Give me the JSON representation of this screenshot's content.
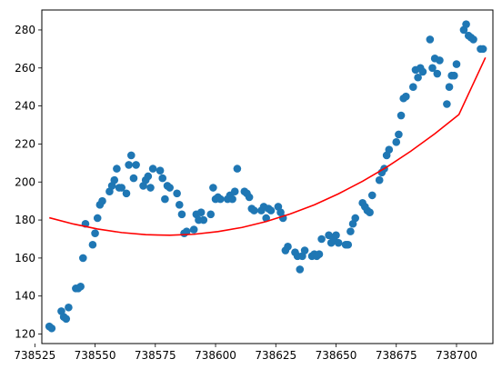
{
  "chart_data": {
    "type": "scatter",
    "title": "",
    "xlabel": "",
    "ylabel": "",
    "xlim": [
      738527.9,
      738715.1
    ],
    "ylim": [
      115.0,
      290.5
    ],
    "x_ticks": [
      738525,
      738550,
      738575,
      738600,
      738625,
      738650,
      738675,
      738700
    ],
    "y_ticks": [
      120,
      140,
      160,
      180,
      200,
      220,
      240,
      260,
      280
    ],
    "grid": false,
    "legend": "none",
    "colors": {
      "points": "#1f77b4",
      "fit": "#ff0000"
    },
    "series": [
      {
        "kind": "points",
        "x": [
          738531,
          738532,
          738536,
          738537,
          738538,
          738539,
          738542,
          738543,
          738544,
          738545,
          738546,
          738549,
          738550,
          738551,
          738552,
          738553,
          738556,
          738557,
          738558,
          738559,
          738560,
          738561,
          738563,
          738564,
          738565,
          738566,
          738567,
          738570,
          738571,
          738572,
          738573,
          738574,
          738577,
          738578,
          738579,
          738580,
          738581,
          738584,
          738585,
          738586,
          738587,
          738588,
          738591,
          738592,
          738593,
          738594,
          738595,
          738598,
          738599,
          738600,
          738601,
          738602,
          738605,
          738606,
          738607,
          738608,
          738609,
          738612,
          738613,
          738614,
          738615,
          738616,
          738619,
          738620,
          738621,
          738622,
          738623,
          738626,
          738627,
          738628,
          738629,
          738630,
          738633,
          738634,
          738635,
          738636,
          738637,
          738640,
          738641,
          738642,
          738643,
          738644,
          738647,
          738648,
          738649,
          738650,
          738651,
          738654,
          738655,
          738656,
          738657,
          738658,
          738661,
          738662,
          738663,
          738664,
          738665,
          738668,
          738669,
          738670,
          738671,
          738672,
          738675,
          738676,
          738677,
          738678,
          738679,
          738682,
          738683,
          738684,
          738685,
          738686,
          738689,
          738690,
          738691,
          738692,
          738693,
          738696,
          738697,
          738698,
          738699,
          738700,
          738703,
          738704,
          738705,
          738706,
          738707,
          738710,
          738711
        ],
        "y": [
          124,
          123,
          132,
          129,
          128,
          134,
          144,
          144,
          145,
          160,
          178,
          167,
          173,
          181,
          188,
          190,
          195,
          198,
          201,
          207,
          197,
          197,
          194,
          209,
          214,
          202,
          209,
          198,
          201,
          203,
          197,
          207,
          206,
          202,
          191,
          198,
          197,
          194,
          188,
          183,
          173,
          174,
          175,
          183,
          180,
          184,
          180,
          183,
          197,
          191,
          192,
          191,
          191,
          193,
          191,
          195,
          207,
          195,
          194,
          192,
          186,
          185,
          185,
          187,
          181,
          186,
          185,
          187,
          184,
          181,
          164,
          166,
          163,
          161,
          154,
          161,
          164,
          161,
          162,
          161,
          162,
          170,
          172,
          168,
          170,
          172,
          168,
          167,
          167,
          174,
          178,
          181,
          189,
          187,
          185,
          184,
          193,
          201,
          205,
          207,
          214,
          217,
          221,
          225,
          235,
          244,
          245,
          250,
          259,
          255,
          260,
          258,
          275,
          260,
          265,
          257,
          264,
          241,
          250,
          256,
          256,
          262,
          280,
          283,
          277,
          276,
          275,
          270,
          270
        ]
      },
      {
        "kind": "fit-line",
        "x": [
          738531,
          738541,
          738551,
          738561,
          738571,
          738576,
          738581,
          738591,
          738601,
          738611,
          738621,
          738631,
          738641,
          738651,
          738661,
          738671,
          738681,
          738691,
          738701,
          738712
        ],
        "y": [
          181.2,
          177.9,
          175.3,
          173.4,
          172.3,
          172.1,
          172.0,
          172.5,
          173.9,
          176.1,
          179.2,
          183.2,
          188.0,
          193.8,
          200.4,
          207.8,
          216.2,
          225.4,
          235.5,
          265.5
        ]
      }
    ]
  }
}
